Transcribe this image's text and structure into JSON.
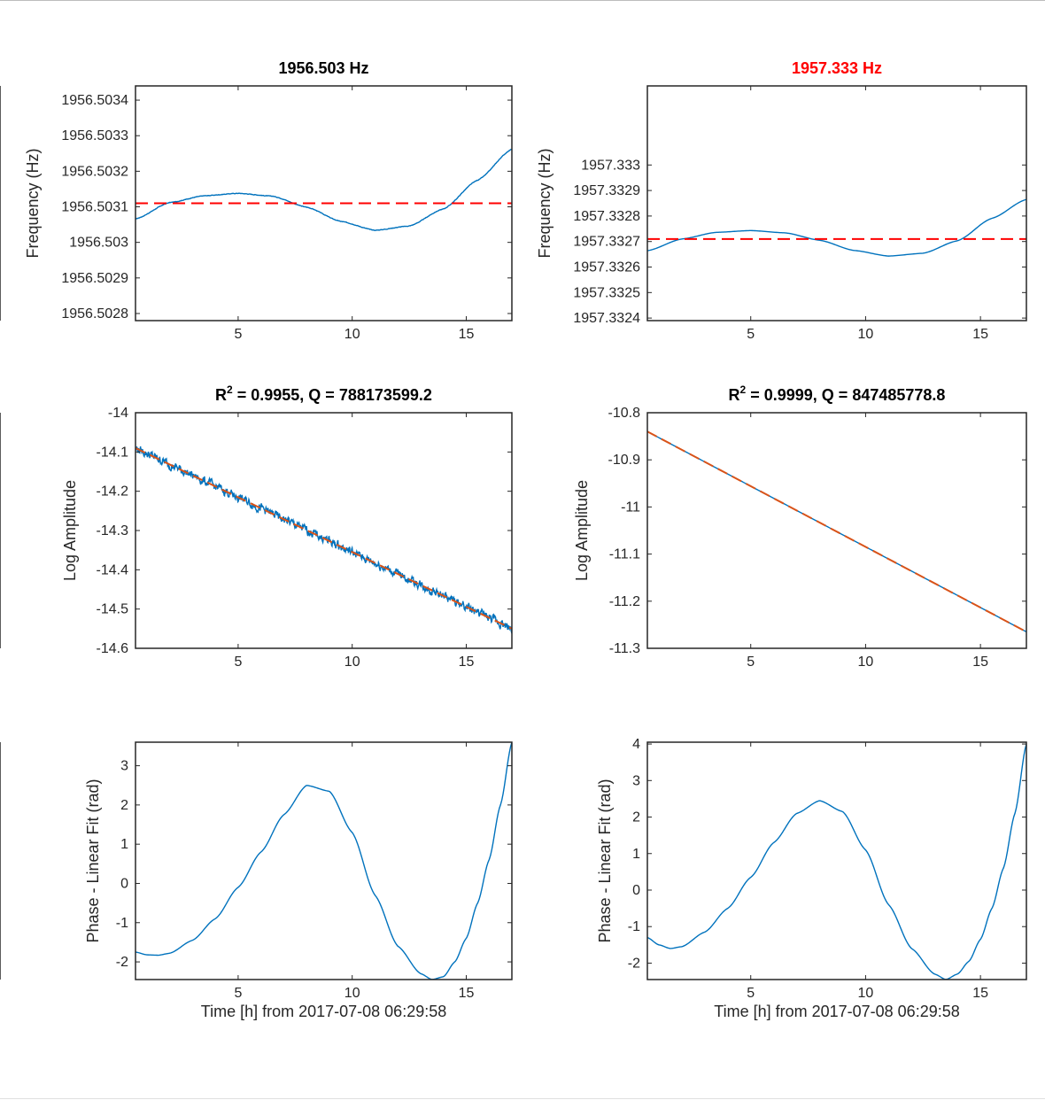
{
  "chart_data": [
    {
      "type": "line",
      "title": "1956.503 Hz",
      "title_color": "#000000",
      "xlabel": "",
      "ylabel": "Frequency (Hz)",
      "xlim": [
        0.5,
        17
      ],
      "ylim": [
        1956.50278,
        1956.50344
      ],
      "xticks": [
        5,
        10,
        15
      ],
      "yticks": [
        1956.5028,
        1956.5029,
        1956.503,
        1956.5031,
        1956.5032,
        1956.5033,
        1956.5034
      ],
      "ytick_labels": [
        "1956.5028",
        "1956.5029",
        "1956.503",
        "1956.5031",
        "1956.5032",
        "1956.5033",
        "1956.5034"
      ],
      "series": [
        {
          "color": "#0072bd",
          "style": "solid",
          "noise": 6e-07,
          "x": [
            0.5,
            2,
            3.5,
            5,
            6.5,
            8,
            9.5,
            11,
            12.5,
            14,
            15.5,
            17
          ],
          "y": [
            1956.503066,
            1956.503112,
            1956.503131,
            1956.503138,
            1956.50313,
            1956.503099,
            1956.503059,
            1956.503034,
            1956.503046,
            1956.503094,
            1956.503175,
            1956.503262
          ]
        },
        {
          "color": "#ff0000",
          "style": "dashed",
          "x": [
            0.5,
            17
          ],
          "y": [
            1956.50311,
            1956.50311
          ]
        }
      ]
    },
    {
      "type": "line",
      "title": "1957.333 Hz",
      "title_color": "#ff0000",
      "xlabel": "",
      "ylabel": "Frequency (Hz)",
      "xlim": [
        0.5,
        17
      ],
      "ylim": [
        1957.33239,
        1957.33331
      ],
      "xticks": [
        5,
        10,
        15
      ],
      "yticks": [
        1957.3324,
        1957.3325,
        1957.3326,
        1957.3327,
        1957.3328,
        1957.3329,
        1957.333
      ],
      "ytick_labels": [
        "1957.3324",
        "1957.3325",
        "1957.3326",
        "1957.3327",
        "1957.3328",
        "1957.3329",
        "1957.333"
      ],
      "series": [
        {
          "color": "#0072bd",
          "style": "solid",
          "noise": 0,
          "x": [
            0.5,
            2,
            3.5,
            5,
            6.5,
            8,
            9.5,
            11,
            12.5,
            14,
            15.5,
            17
          ],
          "y": [
            1957.332664,
            1957.33271,
            1957.332736,
            1957.332743,
            1957.332734,
            1957.332705,
            1957.332665,
            1957.332643,
            1957.332654,
            1957.332703,
            1957.332791,
            1957.332865
          ]
        },
        {
          "color": "#ff0000",
          "style": "dashed",
          "x": [
            0.5,
            17
          ],
          "y": [
            1957.33271,
            1957.33271
          ]
        }
      ]
    },
    {
      "type": "line",
      "title": "R² = 0.9955, Q = 788173599.2",
      "title_color": "#000000",
      "xlabel": "",
      "ylabel": "Log Amplitude",
      "xlim": [
        0.5,
        17
      ],
      "ylim": [
        -14.6,
        -14
      ],
      "xticks": [
        5,
        10,
        15
      ],
      "yticks": [
        -14.6,
        -14.5,
        -14.4,
        -14.3,
        -14.2,
        -14.1,
        -14
      ],
      "ytick_labels": [
        "-14.6",
        "-14.5",
        "-14.4",
        "-14.3",
        "-14.2",
        "-14.1",
        "-14"
      ],
      "series": [
        {
          "color": "#0072bd",
          "style": "solid",
          "noise": 0.009,
          "x": [
            0.5,
            17
          ],
          "y": [
            -14.09,
            -14.55
          ]
        },
        {
          "color": "#d95319",
          "style": "dashed",
          "x": [
            0.5,
            17
          ],
          "y": [
            -14.09,
            -14.55
          ]
        }
      ]
    },
    {
      "type": "line",
      "title": "R² = 0.9999, Q = 847485778.8",
      "title_color": "#000000",
      "xlabel": "",
      "ylabel": "Log Amplitude",
      "xlim": [
        0.5,
        17
      ],
      "ylim": [
        -11.3,
        -10.8
      ],
      "xticks": [
        5,
        10,
        15
      ],
      "yticks": [
        -11.3,
        -11.2,
        -11.1,
        -11,
        -10.9,
        -10.8
      ],
      "ytick_labels": [
        "-11.3",
        "-11.2",
        "-11.1",
        "-11",
        "-10.9",
        "-10.8"
      ],
      "series": [
        {
          "color": "#0072bd",
          "style": "solid",
          "noise": 0,
          "x": [
            0.5,
            17
          ],
          "y": [
            -10.84,
            -11.265
          ]
        },
        {
          "color": "#d95319",
          "style": "dashed",
          "x": [
            0.5,
            17
          ],
          "y": [
            -10.84,
            -11.265
          ]
        }
      ]
    },
    {
      "type": "line",
      "title": "",
      "title_color": "#000000",
      "xlabel": "Time [h] from 2017-07-08 06:29:58",
      "ylabel": "Phase - Linear Fit (rad)",
      "xlim": [
        0.5,
        17
      ],
      "ylim": [
        -2.45,
        3.6
      ],
      "xticks": [
        5,
        10,
        15
      ],
      "yticks": [
        -2,
        -1,
        0,
        1,
        2,
        3
      ],
      "ytick_labels": [
        "-2",
        "-1",
        "0",
        "1",
        "2",
        "3"
      ],
      "series": [
        {
          "color": "#0072bd",
          "style": "solid",
          "noise": 0,
          "x": [
            0.5,
            1,
            1.5,
            2,
            3,
            4,
            5,
            6,
            7,
            8,
            9,
            10,
            11,
            12,
            13,
            13.5,
            14,
            14.5,
            15,
            15.5,
            16,
            16.5,
            17
          ],
          "y": [
            -1.75,
            -1.82,
            -1.83,
            -1.78,
            -1.45,
            -0.9,
            -0.1,
            0.8,
            1.75,
            2.5,
            2.35,
            1.3,
            -0.3,
            -1.6,
            -2.3,
            -2.45,
            -2.38,
            -2.0,
            -1.4,
            -0.5,
            0.6,
            2.0,
            3.6
          ]
        }
      ]
    },
    {
      "type": "line",
      "title": "",
      "title_color": "#000000",
      "xlabel": "Time [h] from 2017-07-08 06:29:58",
      "ylabel": "Phase - Linear Fit (rad)",
      "xlim": [
        0.5,
        17
      ],
      "ylim": [
        -2.45,
        4.05
      ],
      "xticks": [
        5,
        10,
        15
      ],
      "yticks": [
        -2,
        -1,
        0,
        1,
        2,
        3,
        4
      ],
      "ytick_labels": [
        "-2",
        "-1",
        "0",
        "1",
        "2",
        "3",
        "4"
      ],
      "series": [
        {
          "color": "#0072bd",
          "style": "solid",
          "noise": 0,
          "x": [
            0.5,
            1,
            1.5,
            2,
            3,
            4,
            5,
            6,
            7,
            8,
            9,
            10,
            11,
            12,
            13,
            13.5,
            14,
            14.5,
            15,
            15.5,
            16,
            16.5,
            17
          ],
          "y": [
            -1.3,
            -1.5,
            -1.6,
            -1.55,
            -1.15,
            -0.5,
            0.35,
            1.3,
            2.1,
            2.45,
            2.15,
            1.1,
            -0.4,
            -1.6,
            -2.3,
            -2.45,
            -2.3,
            -1.95,
            -1.35,
            -0.5,
            0.6,
            2.1,
            4.0
          ]
        }
      ]
    }
  ]
}
